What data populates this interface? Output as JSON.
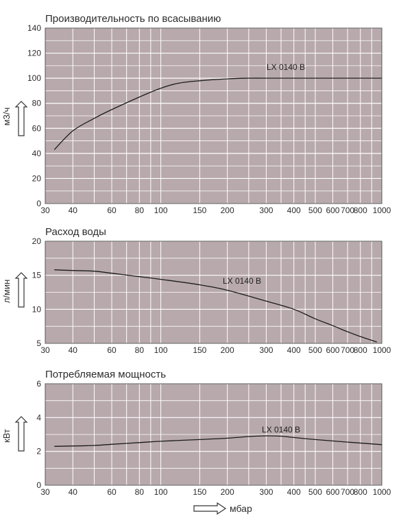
{
  "chart_data": [
    {
      "type": "line",
      "title": "Производительность по всасыванию",
      "ylabel": "м3/ч",
      "xscale": "log",
      "xlim": [
        30,
        1000
      ],
      "ylim": [
        0,
        140
      ],
      "x_ticks": [
        30,
        40,
        60,
        80,
        100,
        150,
        200,
        300,
        400,
        500,
        600,
        700,
        800,
        1000
      ],
      "x_tick_labels": [
        "30",
        "40",
        "60",
        "80",
        "100",
        "150",
        "200",
        "300",
        "400",
        "500",
        "600",
        "700",
        "800",
        "1000"
      ],
      "y_ticks": [
        0,
        20,
        40,
        60,
        80,
        100,
        120,
        140
      ],
      "y_tick_labels": [
        "0",
        "20",
        "40",
        "60",
        "80",
        "100",
        "120",
        "140"
      ],
      "series": [
        {
          "name": "LX 0140 B",
          "x": [
            33,
            40,
            50,
            60,
            80,
            100,
            120,
            150,
            200,
            250,
            300,
            400,
            500,
            700,
            1000
          ],
          "y": [
            43,
            58,
            68,
            75,
            85,
            92,
            96,
            98,
            99.5,
            100,
            100,
            100,
            100,
            100,
            100
          ]
        }
      ],
      "color": "#b8a9ad",
      "grid": true
    },
    {
      "type": "line",
      "title": "Расход воды",
      "ylabel": "л/мин",
      "xscale": "log",
      "xlim": [
        30,
        1000
      ],
      "ylim": [
        5,
        20
      ],
      "x_ticks": [
        30,
        40,
        60,
        80,
        100,
        150,
        200,
        300,
        400,
        500,
        600,
        700,
        800,
        1000
      ],
      "x_tick_labels": [
        "30",
        "40",
        "60",
        "80",
        "100",
        "150",
        "200",
        "300",
        "400",
        "500",
        "600",
        "700",
        "800",
        "1000"
      ],
      "y_ticks": [
        5,
        10,
        15,
        20
      ],
      "y_tick_labels": [
        "5",
        "10",
        "15",
        "20"
      ],
      "series": [
        {
          "name": "LX 0140 B",
          "x": [
            33,
            40,
            50,
            60,
            80,
            100,
            150,
            200,
            300,
            400,
            500,
            600,
            700,
            800,
            950
          ],
          "y": [
            15.8,
            15.7,
            15.6,
            15.3,
            14.8,
            14.4,
            13.6,
            12.8,
            11.2,
            10.0,
            8.6,
            7.6,
            6.7,
            6.0,
            5.2
          ]
        }
      ],
      "color": "#b8a9ad",
      "grid": true
    },
    {
      "type": "line",
      "title": "Потребляемая мощность",
      "ylabel": "кВт",
      "xlabel": "мбар",
      "xscale": "log",
      "xlim": [
        30,
        1000
      ],
      "ylim": [
        0,
        6
      ],
      "x_ticks": [
        30,
        40,
        60,
        80,
        100,
        150,
        200,
        300,
        400,
        500,
        600,
        700,
        800,
        1000
      ],
      "x_tick_labels": [
        "30",
        "40",
        "60",
        "80",
        "100",
        "150",
        "200",
        "300",
        "400",
        "500",
        "600",
        "700",
        "800",
        "1000"
      ],
      "y_ticks": [
        0,
        2,
        4,
        6
      ],
      "y_tick_labels": [
        "0",
        "2",
        "4",
        "6"
      ],
      "series": [
        {
          "name": "LX 0140 B",
          "x": [
            33,
            40,
            50,
            60,
            80,
            100,
            150,
            200,
            250,
            300,
            350,
            400,
            500,
            700,
            1000
          ],
          "y": [
            2.3,
            2.32,
            2.35,
            2.42,
            2.52,
            2.6,
            2.7,
            2.78,
            2.88,
            2.92,
            2.9,
            2.82,
            2.7,
            2.55,
            2.4
          ]
        }
      ],
      "color": "#b8a9ad",
      "grid": true
    }
  ]
}
